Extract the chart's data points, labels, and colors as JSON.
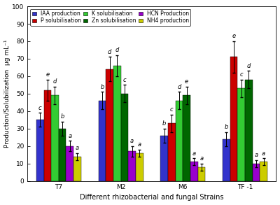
{
  "groups": [
    "T7",
    "M2",
    "M6",
    "TF -1"
  ],
  "series_labels": [
    "IAA production",
    "P solubilisation",
    "K solubilisation",
    "Zn solubilisation",
    "HCN Production",
    "NH4 production"
  ],
  "colors": [
    "#3333cc",
    "#cc0000",
    "#33cc33",
    "#006600",
    "#9900cc",
    "#cccc00"
  ],
  "values": [
    [
      35,
      52,
      49,
      30,
      20,
      14
    ],
    [
      46,
      64,
      66,
      50,
      17,
      16
    ],
    [
      26,
      33,
      46,
      49,
      11,
      8
    ],
    [
      24,
      71,
      53,
      58,
      10,
      11
    ]
  ],
  "errors": [
    [
      4,
      6,
      5,
      4,
      3,
      2
    ],
    [
      5,
      7,
      6,
      5,
      3,
      2
    ],
    [
      4,
      5,
      5,
      5,
      2,
      2
    ],
    [
      4,
      9,
      5,
      5,
      2,
      2
    ]
  ],
  "bar_labels": [
    [
      "c",
      "e",
      "d",
      "b",
      "a",
      "a"
    ],
    [
      "b",
      "d",
      "d",
      "c",
      "a",
      "a"
    ],
    [
      "b",
      "c",
      "d",
      "e",
      "a",
      "a"
    ],
    [
      "b",
      "e",
      "c",
      "d",
      "a",
      "a"
    ]
  ],
  "ylabel": "Production/Solubilization  µg mL⁻¹",
  "xlabel": "Different rhizobacterial and fungal Strains",
  "ylim": [
    0,
    100
  ],
  "yticks": [
    0,
    10,
    20,
    30,
    40,
    50,
    60,
    70,
    80,
    90,
    100
  ],
  "legend_fontsize": 5.5,
  "axis_fontsize": 7,
  "tick_fontsize": 6.5,
  "bar_label_fontsize": 6,
  "bar_width": 0.12,
  "figwidth": 4.0,
  "figheight": 2.93,
  "dpi": 100
}
